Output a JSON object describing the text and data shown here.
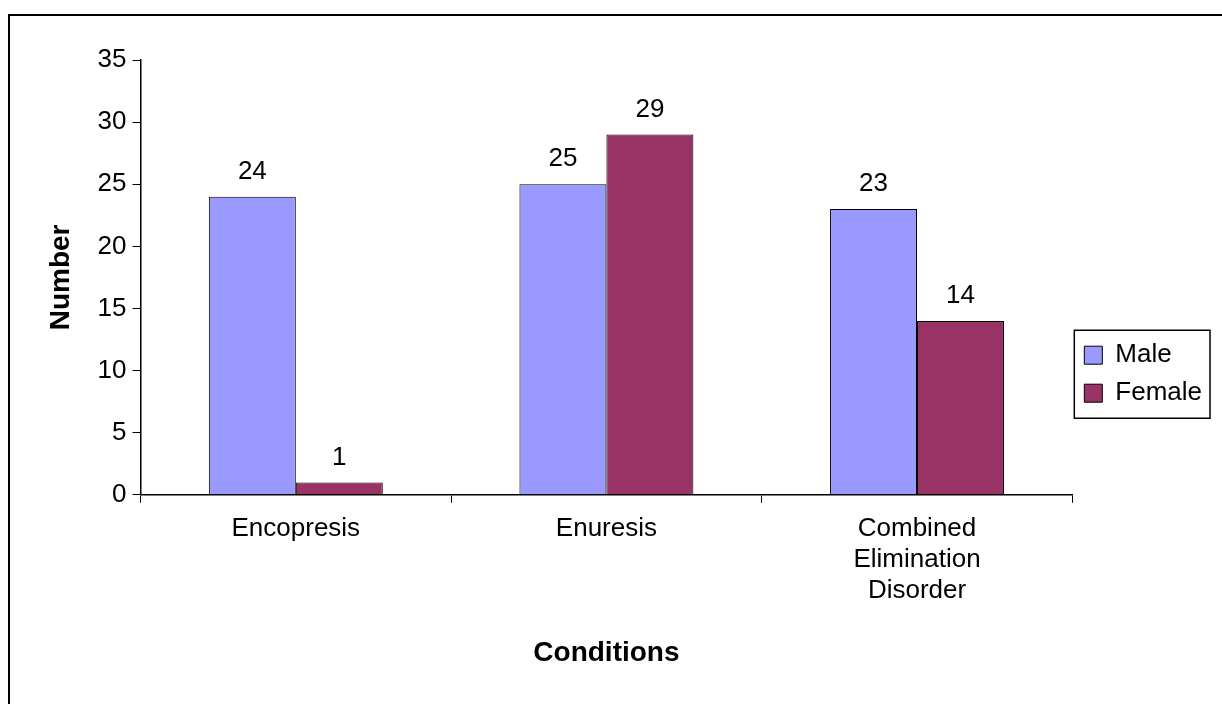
{
  "chart_data": {
    "type": "bar",
    "xlabel": "Conditions",
    "ylabel": "Number",
    "categories": [
      "Encopresis",
      "Enuresis",
      "Combined Elimination Disorder"
    ],
    "series": [
      {
        "name": "Male",
        "color": "#9999ff",
        "values": [
          24,
          25,
          23
        ]
      },
      {
        "name": "Female",
        "color": "#993366",
        "values": [
          1,
          29,
          14
        ]
      }
    ],
    "ylim": [
      0,
      35
    ],
    "yticks": [
      0,
      5,
      10,
      15,
      20,
      25,
      30,
      35
    ],
    "grid": false,
    "legend": "right",
    "data_labels": true
  }
}
